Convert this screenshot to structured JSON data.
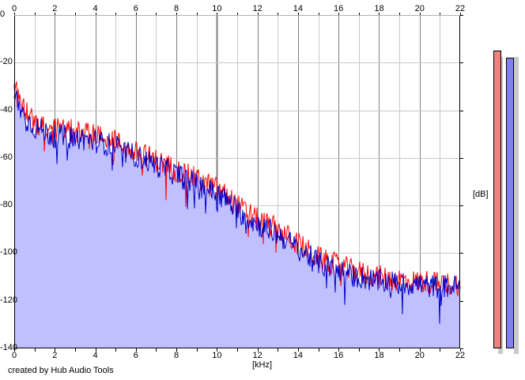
{
  "title": "",
  "credit": "created by Hub Audio Tools",
  "chart_data": {
    "type": "area",
    "title": "",
    "xlabel": "[kHz]",
    "ylabel": "[dB]",
    "xlim": [
      0,
      22
    ],
    "ylim": [
      -140,
      0
    ],
    "grid": true,
    "xticks": [
      "0",
      "2",
      "4",
      "6",
      "8",
      "10",
      "12",
      "14",
      "16",
      "18",
      "20",
      "22"
    ],
    "yticks": [
      "0",
      "-20",
      "-40",
      "-60",
      "-80",
      "-100",
      "-120",
      "-140"
    ],
    "series": [
      {
        "color": "#ff0000",
        "x": [
          0,
          0.5,
          1,
          1.5,
          2,
          2.5,
          3,
          3.5,
          4,
          4.5,
          5,
          5.5,
          6,
          6.5,
          7,
          7.5,
          8,
          8.5,
          9,
          9.5,
          10,
          10.5,
          11,
          11.5,
          12,
          12.5,
          13,
          13.5,
          14,
          14.5,
          15,
          15.5,
          16,
          16.5,
          17,
          17.5,
          18,
          18.5,
          19,
          19.5,
          20,
          20.5,
          21,
          21.5,
          22
        ],
        "values": [
          -30,
          -40,
          -45,
          -47,
          -48,
          -48,
          -49,
          -50,
          -50,
          -52,
          -53,
          -56,
          -58,
          -59,
          -61,
          -63,
          -65,
          -67,
          -69,
          -71,
          -73,
          -76,
          -80,
          -83,
          -86,
          -88,
          -90,
          -93,
          -96,
          -99,
          -102,
          -104,
          -105,
          -107,
          -108,
          -109,
          -110,
          -111,
          -111,
          -112,
          -112,
          -112,
          -113,
          -113,
          -113
        ]
      },
      {
        "color": "#0000c8",
        "fill": "#c0c0ff",
        "x": [
          0,
          0.5,
          1,
          1.5,
          2,
          2.5,
          3,
          3.5,
          4,
          4.5,
          5,
          5.5,
          6,
          6.5,
          7,
          7.5,
          8,
          8.5,
          9,
          9.5,
          10,
          10.5,
          11,
          11.5,
          12,
          12.5,
          13,
          13.5,
          14,
          14.5,
          15,
          15.5,
          16,
          16.5,
          17,
          17.5,
          18,
          18.5,
          19,
          19.5,
          20,
          20.5,
          21,
          21.5,
          22
        ],
        "values": [
          -33,
          -43,
          -47,
          -49,
          -51,
          -51,
          -52,
          -52,
          -53,
          -54,
          -55,
          -58,
          -59,
          -61,
          -63,
          -65,
          -67,
          -69,
          -71,
          -73,
          -75,
          -78,
          -82,
          -85,
          -88,
          -90,
          -92,
          -95,
          -98,
          -101,
          -104,
          -106,
          -107,
          -109,
          -110,
          -111,
          -112,
          -112,
          -113,
          -113,
          -113,
          -114,
          -114,
          -114,
          -114
        ]
      }
    ]
  },
  "meters": {
    "levels": [
      -15,
      -18
    ],
    "colors": [
      "#f08080",
      "#8080f0"
    ]
  },
  "colors": {
    "plot_bg": "#ffffff",
    "grid_minor": "#c8c8c8",
    "grid_major": "#808080",
    "fill": "#c0c0ff"
  }
}
